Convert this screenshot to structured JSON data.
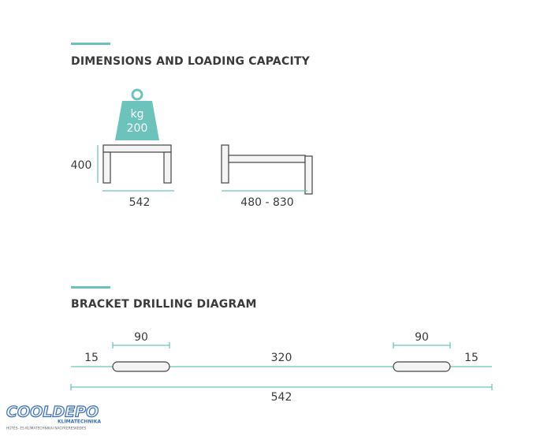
{
  "sections": [
    {
      "title": "DIMENSIONS AND LOADING CAPACITY",
      "weight": {
        "unit": "kg",
        "load": "200"
      },
      "height": "400",
      "width": "542",
      "depth": "480 - 830"
    },
    {
      "title": "BRACKET DRILLING DIAGRAM",
      "slot_left": "90",
      "slot_right": "90",
      "margin_left": "15",
      "spacing": "320",
      "margin_right": "15",
      "total": "542"
    }
  ],
  "logo": {
    "brand": "COOLDEPO",
    "sub": "KLÍMATECHNIKA",
    "tagline": "HŰTÉS- ÉS KLÍMATECHNIKAI NAGYKERESKEDÉS"
  }
}
